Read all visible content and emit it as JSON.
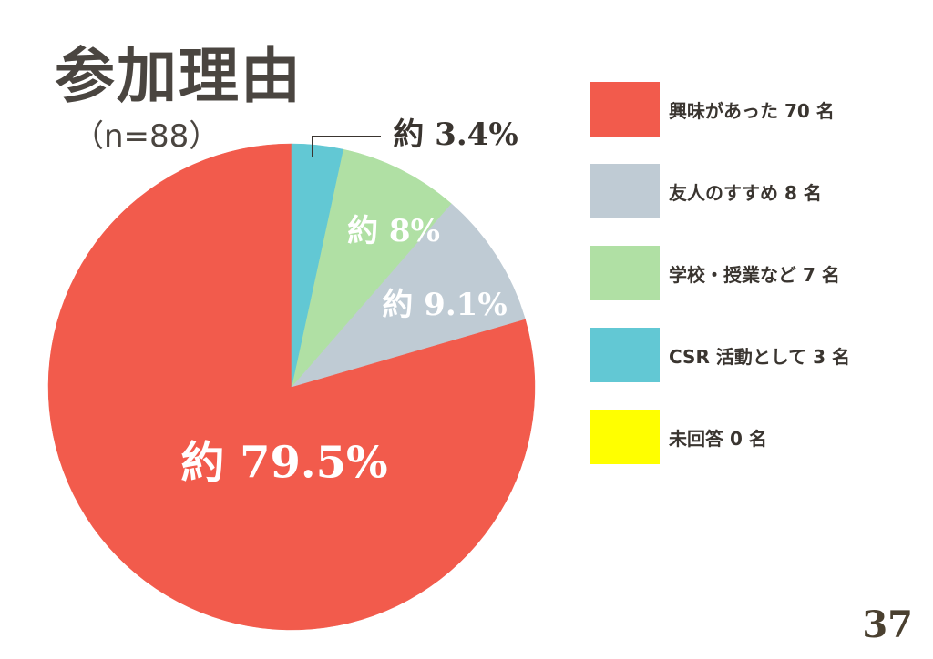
{
  "title": "参加理由",
  "subtitle": "（n=88）",
  "page_number": "37",
  "chart_data": {
    "type": "pie",
    "title": "参加理由",
    "slices": [
      {
        "legend": "興味があった 70 名",
        "count": 70,
        "label": "約 79.5%",
        "percent": 79.5,
        "color": "#f25b4c"
      },
      {
        "legend": "友人のすすめ 8 名",
        "count": 8,
        "label": "約 9.1%",
        "percent": 9.1,
        "color": "#bfcbd4"
      },
      {
        "legend": "学校・授業など 7 名",
        "count": 7,
        "label": "約 8%",
        "percent": 8.0,
        "color": "#b0e0a4"
      },
      {
        "legend": "CSR 活動として 3 名",
        "count": 3,
        "label": "約 3.4%",
        "percent": 3.4,
        "color": "#62c8d4"
      },
      {
        "legend": "未回答 0 名",
        "count": 0,
        "label": "",
        "percent": 0,
        "color": "#ffff00"
      }
    ],
    "start": "top",
    "direction": "counterclockwise"
  }
}
